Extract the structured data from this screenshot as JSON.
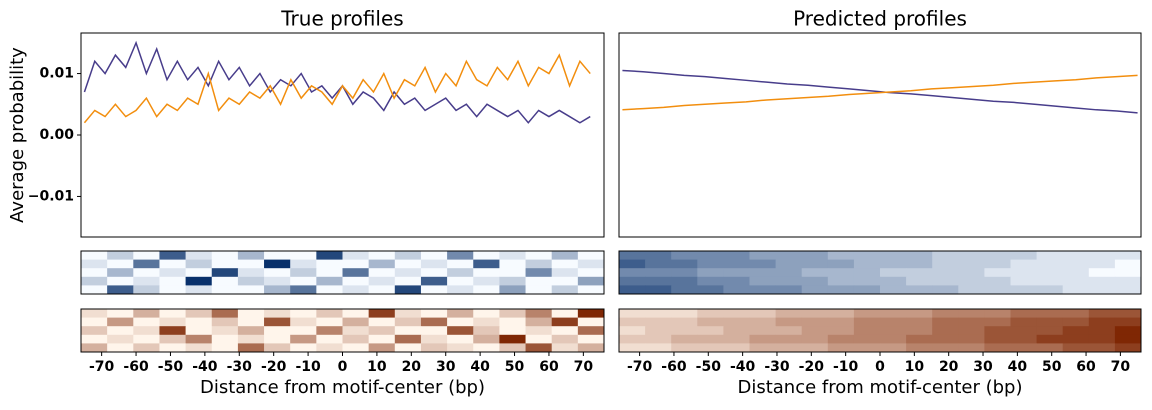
{
  "chart_data": [
    {
      "type": "line",
      "title": "True profiles",
      "ylabel": "Average probability",
      "xlim": [
        -76,
        76
      ],
      "ylim": [
        -0.0166,
        0.0166
      ],
      "yticks": [
        {
          "value": 0.01,
          "label": "0.01"
        },
        {
          "value": 0,
          "label": "0.00"
        },
        {
          "value": -0.01,
          "label": "−0.01"
        }
      ],
      "x": [
        -75,
        -72,
        -69,
        -66,
        -63,
        -60,
        -57,
        -54,
        -51,
        -48,
        -45,
        -42,
        -39,
        -36,
        -33,
        -30,
        -27,
        -24,
        -21,
        -18,
        -15,
        -12,
        -9,
        -6,
        -3,
        0,
        3,
        6,
        9,
        12,
        15,
        18,
        21,
        24,
        27,
        30,
        33,
        36,
        39,
        42,
        45,
        48,
        51,
        54,
        57,
        60,
        63,
        66,
        69,
        72
      ],
      "series": [
        {
          "color": "#483d8b",
          "values": [
            0.007,
            0.012,
            0.01,
            0.013,
            0.011,
            0.015,
            0.01,
            0.014,
            0.009,
            0.012,
            0.009,
            0.011,
            0.008,
            0.012,
            0.009,
            0.011,
            0.008,
            0.01,
            0.007,
            0.009,
            0.008,
            0.01,
            0.007,
            0.008,
            0.006,
            0.008,
            0.005,
            0.007,
            0.006,
            0.004,
            0.007,
            0.005,
            0.006,
            0.004,
            0.005,
            0.006,
            0.004,
            0.005,
            0.003,
            0.005,
            0.004,
            0.003,
            0.004,
            0.002,
            0.004,
            0.003,
            0.004,
            0.003,
            0.002,
            0.003
          ]
        },
        {
          "color": "#f28e0e",
          "values": [
            0.002,
            0.004,
            0.003,
            0.005,
            0.003,
            0.004,
            0.006,
            0.003,
            0.005,
            0.004,
            0.006,
            0.005,
            0.01,
            0.004,
            0.006,
            0.005,
            0.007,
            0.006,
            0.008,
            0.005,
            0.009,
            0.006,
            0.008,
            0.007,
            0.005,
            0.008,
            0.006,
            0.009,
            0.007,
            0.01,
            0.006,
            0.009,
            0.008,
            0.011,
            0.007,
            0.01,
            0.008,
            0.012,
            0.009,
            0.008,
            0.011,
            0.009,
            0.012,
            0.008,
            0.011,
            0.01,
            0.013,
            0.008,
            0.012,
            0.01
          ]
        }
      ]
    },
    {
      "type": "heatmap",
      "xlim": [
        -76,
        76
      ],
      "zlim": [
        0,
        9
      ],
      "colors": [
        "#f7fbff",
        "#08306b"
      ],
      "z": [
        [
          0,
          2,
          0,
          7,
          1,
          0,
          3,
          0,
          0,
          8,
          1,
          0,
          2,
          0,
          5,
          0,
          1,
          0,
          3,
          0
        ],
        [
          1,
          0,
          6,
          0,
          2,
          0,
          0,
          9,
          1,
          0,
          0,
          3,
          0,
          1,
          0,
          7,
          0,
          2,
          0,
          1
        ],
        [
          0,
          3,
          0,
          1,
          0,
          8,
          1,
          0,
          2,
          0,
          6,
          0,
          1,
          0,
          2,
          0,
          0,
          5,
          1,
          0
        ],
        [
          2,
          0,
          1,
          0,
          9,
          0,
          2,
          1,
          0,
          3,
          0,
          1,
          0,
          7,
          0,
          1,
          2,
          0,
          0,
          4
        ],
        [
          0,
          7,
          2,
          0,
          1,
          0,
          0,
          3,
          6,
          0,
          1,
          0,
          8,
          0,
          1,
          0,
          4,
          0,
          2,
          0
        ]
      ]
    },
    {
      "type": "heatmap",
      "xlabel": "Distance from motif-center (bp)",
      "xlim": [
        -76,
        76
      ],
      "xticks": [
        -70,
        -60,
        -50,
        -40,
        -30,
        -20,
        -10,
        0,
        10,
        20,
        30,
        40,
        50,
        60,
        70
      ],
      "zlim": [
        0,
        9
      ],
      "colors": [
        "#fff5eb",
        "#7f2704"
      ],
      "z": [
        [
          1,
          0,
          3,
          0,
          2,
          6,
          0,
          1,
          0,
          2,
          0,
          8,
          1,
          0,
          3,
          0,
          2,
          5,
          0,
          9
        ],
        [
          0,
          4,
          0,
          1,
          0,
          2,
          0,
          7,
          1,
          0,
          3,
          0,
          2,
          6,
          0,
          1,
          0,
          3,
          8,
          0
        ],
        [
          2,
          0,
          1,
          8,
          0,
          1,
          3,
          0,
          0,
          5,
          1,
          2,
          0,
          0,
          7,
          2,
          0,
          1,
          0,
          6
        ],
        [
          0,
          1,
          0,
          2,
          5,
          0,
          1,
          0,
          4,
          0,
          2,
          0,
          6,
          1,
          0,
          3,
          9,
          0,
          2,
          0
        ],
        [
          3,
          0,
          2,
          0,
          1,
          0,
          6,
          2,
          0,
          1,
          0,
          4,
          0,
          2,
          1,
          0,
          2,
          7,
          1,
          3
        ]
      ]
    },
    {
      "type": "line",
      "title": "Predicted profiles",
      "xlim": [
        -76,
        76
      ],
      "ylim": [
        -0.0166,
        0.0166
      ],
      "x": [
        -75,
        -69,
        -63,
        -57,
        -51,
        -45,
        -39,
        -33,
        -27,
        -21,
        -15,
        -9,
        -3,
        3,
        9,
        15,
        21,
        27,
        33,
        39,
        45,
        51,
        57,
        63,
        69,
        75
      ],
      "series": [
        {
          "color": "#483d8b",
          "values": [
            0.0105,
            0.0103,
            0.01,
            0.0097,
            0.0095,
            0.0092,
            0.0089,
            0.0086,
            0.0083,
            0.0081,
            0.0078,
            0.0075,
            0.0072,
            0.0069,
            0.0067,
            0.0064,
            0.0061,
            0.0058,
            0.0055,
            0.0053,
            0.005,
            0.0047,
            0.0044,
            0.0041,
            0.0039,
            0.0036
          ]
        },
        {
          "color": "#f28e0e",
          "values": [
            0.0041,
            0.0043,
            0.0045,
            0.0048,
            0.005,
            0.0052,
            0.0054,
            0.0057,
            0.0059,
            0.0061,
            0.0063,
            0.0066,
            0.0068,
            0.007,
            0.0072,
            0.0075,
            0.0077,
            0.0079,
            0.0081,
            0.0084,
            0.0086,
            0.0088,
            0.009,
            0.0093,
            0.0095,
            0.0097
          ]
        }
      ]
    },
    {
      "type": "heatmap",
      "xlim": [
        -76,
        76
      ],
      "zlim": [
        0,
        9
      ],
      "colors": [
        "#f7fbff",
        "#08306b"
      ],
      "z": [
        [
          6,
          6,
          5,
          5,
          5,
          4,
          4,
          4,
          3,
          3,
          3,
          3,
          2,
          2,
          2,
          2,
          1,
          1,
          1,
          1
        ],
        [
          7,
          6,
          6,
          5,
          5,
          5,
          4,
          4,
          4,
          3,
          3,
          3,
          2,
          2,
          2,
          1,
          1,
          1,
          1,
          0
        ],
        [
          5,
          5,
          5,
          4,
          4,
          4,
          4,
          3,
          3,
          3,
          2,
          2,
          2,
          2,
          1,
          1,
          1,
          1,
          0,
          0
        ],
        [
          6,
          6,
          6,
          5,
          5,
          4,
          4,
          4,
          3,
          3,
          3,
          2,
          2,
          2,
          2,
          1,
          1,
          1,
          1,
          1
        ],
        [
          7,
          7,
          6,
          6,
          5,
          5,
          5,
          4,
          4,
          4,
          3,
          3,
          3,
          2,
          2,
          2,
          2,
          1,
          1,
          1
        ]
      ]
    },
    {
      "type": "heatmap",
      "xlabel": "Distance from motif-center (bp)",
      "xlim": [
        -76,
        76
      ],
      "xticks": [
        -70,
        -60,
        -50,
        -40,
        -30,
        -20,
        -10,
        0,
        10,
        20,
        30,
        40,
        50,
        60,
        70
      ],
      "zlim": [
        0,
        9
      ],
      "colors": [
        "#fff5eb",
        "#7f2704"
      ],
      "z": [
        [
          1,
          1,
          1,
          2,
          2,
          2,
          3,
          3,
          3,
          4,
          4,
          4,
          5,
          5,
          5,
          6,
          6,
          6,
          7,
          7
        ],
        [
          2,
          2,
          2,
          3,
          3,
          3,
          4,
          4,
          4,
          5,
          5,
          5,
          6,
          6,
          6,
          7,
          7,
          7,
          8,
          8
        ],
        [
          1,
          2,
          2,
          2,
          3,
          3,
          3,
          4,
          4,
          5,
          5,
          5,
          6,
          6,
          7,
          7,
          7,
          8,
          8,
          9
        ],
        [
          2,
          2,
          3,
          3,
          3,
          4,
          4,
          4,
          5,
          5,
          5,
          6,
          6,
          6,
          7,
          7,
          8,
          8,
          8,
          9
        ],
        [
          1,
          1,
          2,
          2,
          2,
          3,
          3,
          3,
          4,
          4,
          4,
          5,
          5,
          5,
          6,
          6,
          6,
          7,
          7,
          8
        ]
      ]
    }
  ]
}
